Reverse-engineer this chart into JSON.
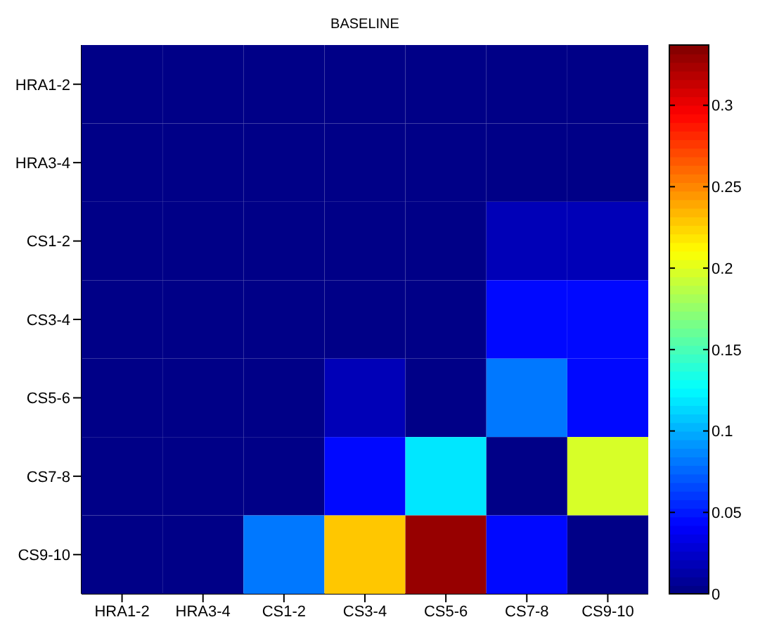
{
  "chart_data": {
    "type": "heatmap",
    "title": "BASELINE",
    "categories": [
      "HRA1-2",
      "HRA3-4",
      "CS1-2",
      "CS3-4",
      "CS5-6",
      "CS7-8",
      "CS9-10"
    ],
    "y_categories": [
      "HRA1-2",
      "HRA3-4",
      "CS1-2",
      "CS3-4",
      "CS5-6",
      "CS7-8",
      "CS9-10"
    ],
    "cells": [
      [
        0,
        0,
        0,
        0,
        0,
        0,
        0
      ],
      [
        0,
        0,
        0,
        0,
        0,
        0,
        0
      ],
      [
        0,
        0,
        0,
        0,
        0,
        0.02,
        0.02
      ],
      [
        0,
        0,
        0,
        0,
        0,
        0.045,
        0.045
      ],
      [
        0,
        0,
        0,
        0.02,
        0,
        0.08,
        0.045
      ],
      [
        0,
        0,
        0,
        0.045,
        0.12,
        0,
        0.2
      ],
      [
        0,
        0,
        0.08,
        0.23,
        0.33,
        0.045,
        0
      ]
    ],
    "clim": [
      0,
      0.337
    ],
    "cticks": [
      0,
      0.05,
      0.1,
      0.15,
      0.2,
      0.25,
      0.3
    ]
  }
}
